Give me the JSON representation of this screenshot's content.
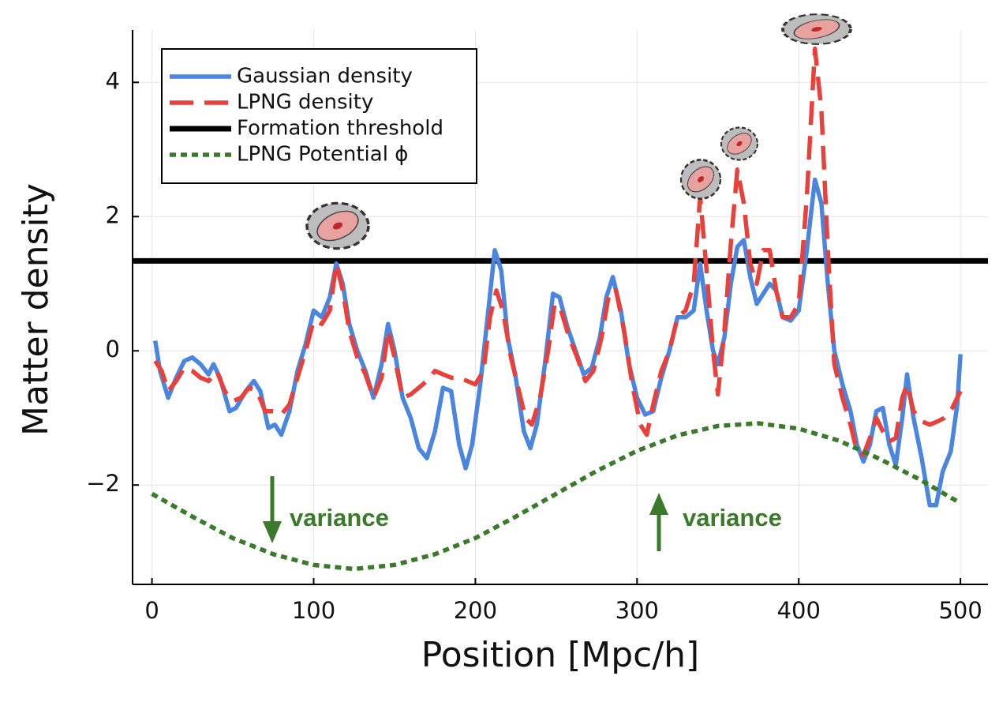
{
  "chart_data": {
    "type": "line",
    "xlabel": "Position [Mpc/h]",
    "ylabel": "Matter density",
    "xlim": [
      -12,
      517
    ],
    "ylim": [
      -3.48,
      4.78
    ],
    "xticks": [
      0,
      100,
      200,
      300,
      400,
      500
    ],
    "yticks": [
      {
        "value": -2,
        "label": "−2"
      },
      0,
      2,
      4
    ],
    "grid": true,
    "legend": "upper left",
    "series": [
      {
        "name": "Gaussian density",
        "color": "#4a86e0",
        "style": "solid",
        "x": [
          2,
          5,
          10,
          15,
          20,
          25,
          30,
          35,
          38,
          42,
          48,
          52,
          58,
          63,
          67,
          72,
          76,
          80,
          85,
          90,
          95,
          100,
          105,
          110,
          114,
          118,
          122,
          127,
          132,
          137,
          142,
          146,
          150,
          155,
          160,
          165,
          170,
          175,
          180,
          185,
          190,
          194,
          198,
          203,
          208,
          212,
          216,
          220,
          225,
          230,
          234,
          238,
          243,
          248,
          252,
          257,
          262,
          267,
          272,
          277,
          281,
          285,
          290,
          295,
          300,
          305,
          310,
          315,
          320,
          325,
          330,
          335,
          339,
          343,
          347,
          350,
          354,
          358,
          362,
          366,
          370,
          374,
          378,
          382,
          386,
          390,
          395,
          400,
          405,
          410,
          414,
          418,
          422,
          427,
          432,
          436,
          440,
          444,
          448,
          452,
          456,
          460,
          464,
          467,
          471,
          476,
          481,
          485,
          489,
          494,
          498,
          500
        ],
        "values": [
          0.15,
          -0.3,
          -0.7,
          -0.4,
          -0.15,
          -0.1,
          -0.2,
          -0.35,
          -0.2,
          -0.4,
          -0.9,
          -0.85,
          -0.6,
          -0.45,
          -0.6,
          -1.15,
          -1.1,
          -1.25,
          -0.9,
          -0.3,
          0.1,
          0.6,
          0.5,
          0.8,
          1.3,
          1.0,
          0.4,
          0.0,
          -0.3,
          -0.7,
          -0.2,
          0.4,
          0.0,
          -0.7,
          -1.0,
          -1.45,
          -1.6,
          -1.2,
          -0.55,
          -0.6,
          -1.4,
          -1.75,
          -1.4,
          -0.5,
          0.6,
          1.5,
          1.2,
          0.2,
          -0.4,
          -1.2,
          -1.45,
          -1.1,
          -0.2,
          0.85,
          0.8,
          0.35,
          0.0,
          -0.35,
          -0.25,
          0.2,
          0.8,
          1.1,
          0.6,
          -0.2,
          -0.7,
          -0.95,
          -0.9,
          -0.4,
          0.0,
          0.5,
          0.5,
          0.6,
          1.3,
          0.6,
          0.0,
          -0.2,
          0.2,
          1.0,
          1.55,
          1.65,
          1.1,
          0.7,
          0.85,
          1.0,
          0.9,
          0.5,
          0.45,
          0.6,
          1.5,
          2.55,
          2.2,
          1.0,
          0.0,
          -0.5,
          -0.9,
          -1.4,
          -1.65,
          -1.4,
          -0.9,
          -0.85,
          -1.4,
          -1.7,
          -1.0,
          -0.35,
          -1.0,
          -1.6,
          -2.3,
          -2.3,
          -1.8,
          -1.5,
          -0.8,
          -0.05
        ]
      },
      {
        "name": "LPNG density",
        "color": "#e8413c",
        "style": "dashed",
        "x": [
          2,
          6,
          10,
          15,
          20,
          25,
          30,
          35,
          40,
          45,
          50,
          55,
          60,
          65,
          70,
          75,
          80,
          85,
          90,
          95,
          100,
          105,
          110,
          114,
          118,
          122,
          127,
          132,
          137,
          142,
          146,
          150,
          155,
          160,
          165,
          170,
          175,
          180,
          185,
          190,
          195,
          200,
          205,
          209,
          213,
          217,
          222,
          227,
          231,
          235,
          240,
          245,
          249,
          253,
          258,
          263,
          268,
          273,
          278,
          283,
          287,
          292,
          297,
          302,
          306,
          310,
          315,
          320,
          325,
          330,
          335,
          339,
          343,
          347,
          350,
          354,
          358,
          362,
          366,
          370,
          374,
          378,
          382,
          386,
          390,
          395,
          400,
          405,
          410,
          414,
          418,
          422,
          427,
          432,
          436,
          440,
          444,
          448,
          452,
          456,
          460,
          464,
          467,
          471,
          476,
          481,
          486,
          490,
          495,
          500
        ],
        "values": [
          -0.15,
          -0.3,
          -0.6,
          -0.45,
          -0.25,
          -0.3,
          -0.4,
          -0.45,
          -0.3,
          -0.6,
          -0.75,
          -0.7,
          -0.55,
          -0.6,
          -0.9,
          -0.9,
          -0.95,
          -0.8,
          -0.4,
          0.0,
          0.45,
          0.4,
          0.6,
          1.3,
          0.9,
          0.3,
          -0.1,
          -0.35,
          -0.7,
          -0.4,
          0.3,
          -0.1,
          -0.7,
          -0.65,
          -0.55,
          -0.45,
          -0.3,
          -0.35,
          -0.4,
          -0.4,
          -0.45,
          -0.5,
          -0.3,
          0.5,
          0.9,
          0.6,
          -0.1,
          -0.6,
          -1.0,
          -1.1,
          -0.7,
          0.0,
          0.7,
          0.6,
          0.2,
          -0.1,
          -0.45,
          -0.3,
          0.2,
          0.9,
          0.9,
          0.3,
          -0.5,
          -1.1,
          -1.25,
          -0.8,
          -0.3,
          0.0,
          0.5,
          0.6,
          1.0,
          2.3,
          1.2,
          0.0,
          -0.65,
          0.3,
          1.6,
          2.7,
          2.2,
          1.3,
          1.0,
          1.5,
          1.5,
          0.9,
          0.5,
          0.5,
          0.7,
          2.3,
          4.5,
          3.6,
          1.5,
          -0.2,
          -0.7,
          -1.1,
          -1.5,
          -1.55,
          -1.3,
          -1.0,
          -1.2,
          -1.35,
          -1.3,
          -0.7,
          -0.5,
          -0.9,
          -1.05,
          -1.1,
          -1.05,
          -1.0,
          -0.85,
          -0.6
        ]
      },
      {
        "name": "Formation threshold",
        "color": "#000000",
        "style": "solid",
        "width": 7,
        "x": [
          -12,
          517
        ],
        "values": [
          1.34,
          1.34
        ]
      },
      {
        "name": "LPNG Potential ϕ",
        "color": "#3a7a2a",
        "style": "dotted",
        "x": [
          0,
          25,
          50,
          75,
          100,
          125,
          150,
          175,
          200,
          225,
          250,
          275,
          300,
          325,
          350,
          375,
          400,
          425,
          450,
          475,
          500
        ],
        "values": [
          -2.13,
          -2.47,
          -2.79,
          -3.03,
          -3.19,
          -3.25,
          -3.19,
          -3.03,
          -2.79,
          -2.47,
          -2.13,
          -1.79,
          -1.49,
          -1.26,
          -1.12,
          -1.08,
          -1.16,
          -1.34,
          -1.61,
          -1.92,
          -2.27
        ]
      }
    ],
    "annotations": [
      {
        "text": "variance"
      },
      {
        "text": "variance"
      }
    ]
  }
}
